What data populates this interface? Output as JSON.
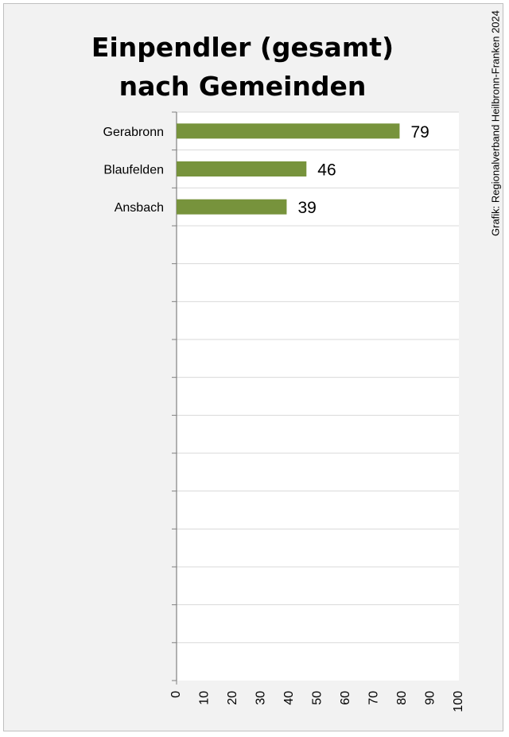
{
  "credit": "Grafik: Regionalverband Heilbronn-Franken 2024",
  "colors": {
    "bar": "#77933c",
    "plot_background": "#ffffff",
    "gridline": "#d9d9d9",
    "axis": "#808080",
    "frame_background": "#f2f2f2"
  },
  "chart_data": {
    "type": "bar",
    "orientation": "horizontal",
    "title_lines": [
      "Einpendler (gesamt)",
      "nach Gemeinden"
    ],
    "categories": [
      "Gerabronn",
      "Blaufelden",
      "Ansbach"
    ],
    "values": [
      79,
      46,
      39
    ],
    "data_labels": [
      "79",
      "46",
      "39"
    ],
    "category_slots": 15,
    "xlim": [
      0,
      100
    ],
    "x_ticks": [
      "0",
      "10",
      "20",
      "30",
      "40",
      "50",
      "60",
      "70",
      "80",
      "90",
      "100"
    ],
    "grid": "horizontal",
    "legend": "none",
    "xlabel": "",
    "ylabel": ""
  }
}
